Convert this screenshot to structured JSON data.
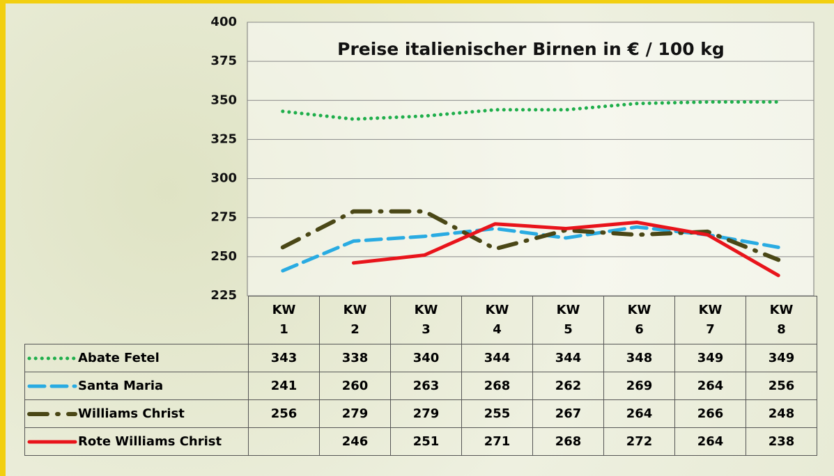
{
  "chart_data": {
    "type": "line",
    "title": "Preise italienischer Birnen in € / 100 kg",
    "categories": [
      "KW 1",
      "KW 2",
      "KW 3",
      "KW 4",
      "KW 5",
      "KW 6",
      "KW 7",
      "KW 8"
    ],
    "series": [
      {
        "name": "Abate Fetel",
        "color": "#1fae4b",
        "dash": "dot",
        "values": [
          343,
          338,
          340,
          344,
          344,
          348,
          349,
          349
        ]
      },
      {
        "name": "Santa Maria",
        "color": "#29abe2",
        "dash": "dash",
        "values": [
          241,
          260,
          263,
          268,
          262,
          269,
          264,
          256
        ]
      },
      {
        "name": "Williams Christ",
        "color": "#4a4716",
        "dash": "dashdot",
        "values": [
          256,
          279,
          279,
          255,
          267,
          264,
          266,
          248
        ]
      },
      {
        "name": "Rote Williams Christ",
        "color": "#e8141b",
        "dash": "solid",
        "values": [
          null,
          246,
          251,
          271,
          268,
          272,
          264,
          238
        ]
      }
    ],
    "ylim": [
      225,
      400
    ],
    "yticks": [
      225,
      250,
      275,
      300,
      325,
      350,
      375,
      400
    ],
    "grid": true
  }
}
